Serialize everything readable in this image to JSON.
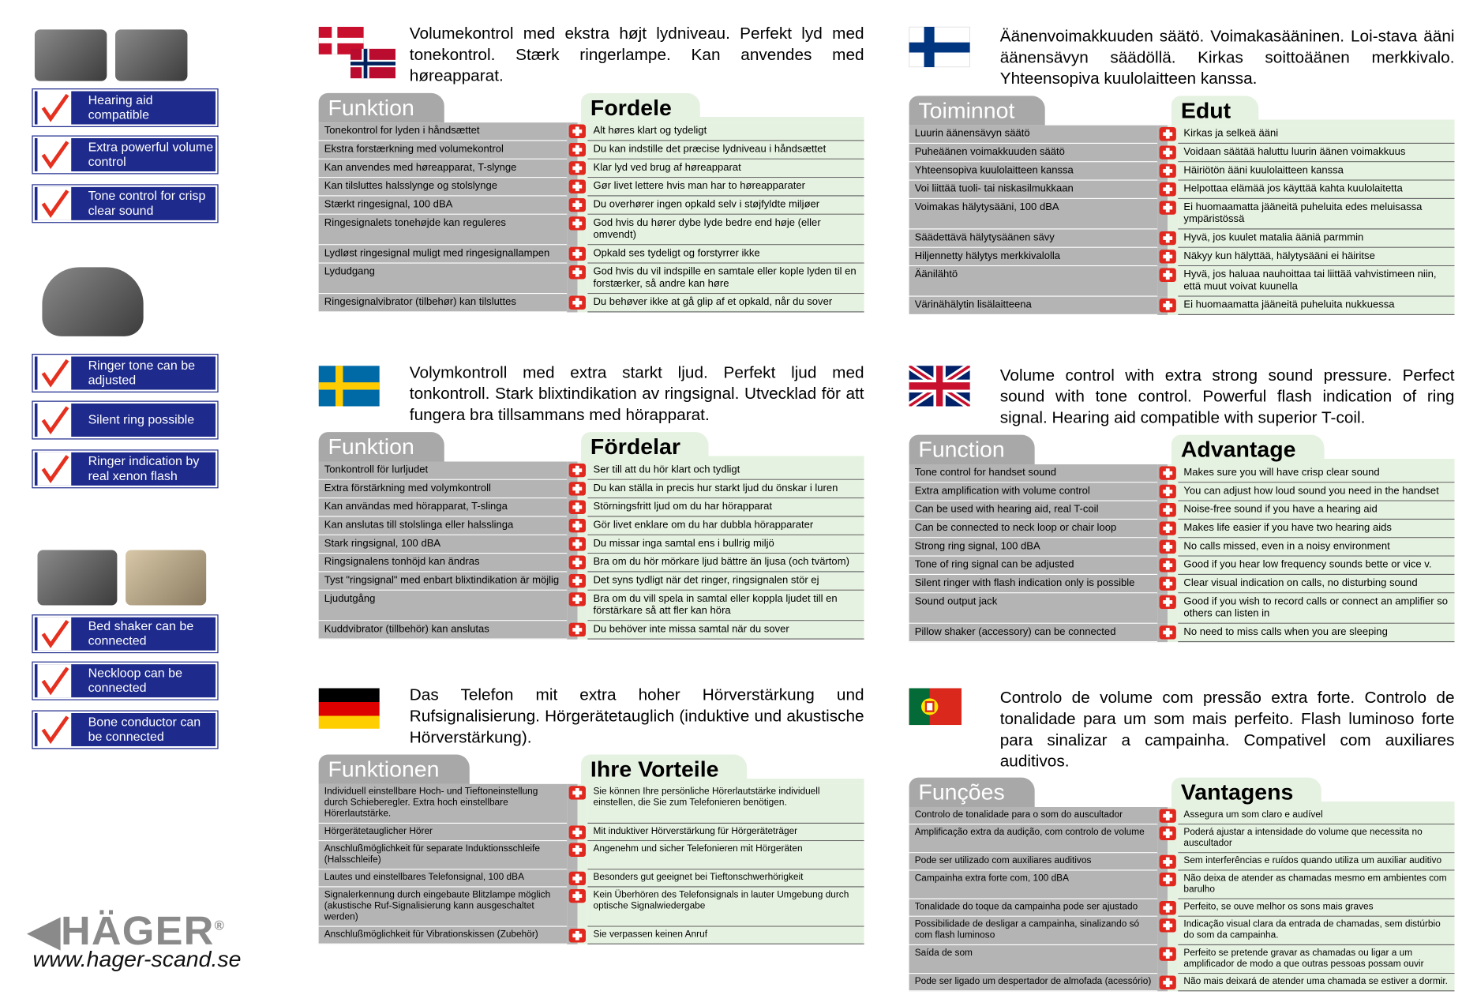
{
  "sidebar": {
    "features": [
      "Hearing aid compatible",
      "Extra powerful volume control",
      "Tone control for crisp clear sound",
      "Ringer tone can be adjusted",
      "Silent ring possible",
      "Ringer indication by real xenon flash",
      "Bed shaker can be connected",
      "Neckloop can be connected",
      "Bone conductor can be connected"
    ],
    "logo": "HÄGER",
    "logo_mark": "®",
    "website": "www.hager-scand.se"
  },
  "panels": [
    {
      "intro": "Volumekontrol med ekstra højt lydniveau. Perfekt lyd med tonekontrol. Stærk ringerlampe. Kan anvendes med høreapparat.",
      "headers": [
        "Funktion",
        "Fordele"
      ],
      "rows": [
        [
          "Tonekontrol for lyden i håndsættet",
          "Alt høres klart og tydeligt"
        ],
        [
          "Ekstra forstærkning med volumekontrol",
          "Du kan indstille det præcise lydniveau i håndsættet"
        ],
        [
          "Kan anvendes med høreapparat, T-slynge",
          "Klar lyd ved brug af høreapparat"
        ],
        [
          "Kan tilsluttes halsslynge og stolslynge",
          "Gør livet lettere hvis man har to høreapparater"
        ],
        [
          "Stærkt ringesignal, 100 dBA",
          "Du overhører ingen opkald selv i støjfyldte miljøer"
        ],
        [
          "Ringesignalets tonehøjde kan reguleres",
          "God hvis du hører dybe lyde bedre end høje (eller omvendt)"
        ],
        [
          "Lydløst ringesignal muligt med ringesignallampen",
          "Opkald ses tydeligt og forstyrrer ikke"
        ],
        [
          "Lydudgang",
          "God hvis du vil indspille en samtale eller kople lyden til en forstærker, så andre kan høre"
        ],
        [
          "Ringesignalvibrator (tilbehør) kan tilsluttes",
          "Du behøver ikke at gå glip af et opkald, når du sover"
        ]
      ]
    },
    {
      "intro": "Äänenvoimakkuuden säätö. Voimakasääninen. Loi-stava ääni äänensävyn säädöllä. Kirkas soittoäänen merkkivalo. Yhteensopiva kuulolaitteen kanssa.",
      "headers": [
        "Toiminnot",
        "Edut"
      ],
      "rows": [
        [
          "Luurin äänensävyn säätö",
          "Kirkas ja selkeä ääni"
        ],
        [
          "Puheäänen voimakkuuden säätö",
          "Voidaan säätää haluttu luurin äänen voimakkuus"
        ],
        [
          "Yhteensopiva kuulolaitteen kanssa",
          "Häiriötön ääni kuulolaitteen kanssa"
        ],
        [
          "Voi liittää tuoli- tai niskasilmukkaan",
          "Helpottaa elämää jos käyttää kahta kuulolaitetta"
        ],
        [
          "Voimakas hälytysääni, 100 dBA",
          "Ei huomaamatta jääneitä puheluita edes meluisassa ympäristössä"
        ],
        [
          "Säädettävä hälytysäänen sävy",
          "Hyvä, jos kuulet matalia ääniä parmmin"
        ],
        [
          "Hiljennetty hälytys merkkivalolla",
          "Näkyy kun hälyttää, hälytysääni ei häiritse"
        ],
        [
          "Äänilähtö",
          "Hyvä, jos haluaa nauhoittaa tai liittää vahvistimeen niin, että muut voivat kuunella"
        ],
        [
          "Värinähälytin lisälaitteena",
          "Ei huomaamatta jääneitä puheluita nukkuessa"
        ]
      ]
    },
    {
      "intro": "Volymkontroll med extra starkt ljud. Perfekt ljud med tonkontroll. Stark blixtindikation av ringsignal. Utvecklad för att fungera bra tillsammans med hörapparat.",
      "headers": [
        "Funktion",
        "Fördelar"
      ],
      "rows": [
        [
          "Tonkontroll för lurljudet",
          "Ser till att du hör klart och tydligt"
        ],
        [
          "Extra förstärkning med volymkontroll",
          "Du kan ställa in precis hur starkt ljud du önskar i luren"
        ],
        [
          "Kan användas med hörapparat, T-slinga",
          "Störningsfritt ljud om du har hörapparat"
        ],
        [
          "Kan anslutas till stolslinga eller halsslinga",
          "Gör livet enklare om du har dubbla hörapparater"
        ],
        [
          "Stark ringsignal, 100 dBA",
          "Du missar inga samtal ens i bullrig miljö"
        ],
        [
          "Ringsignalens tonhöjd kan ändras",
          "Bra om du hör mörkare ljud bättre än ljusa (och tvärtom)"
        ],
        [
          "Tyst \"ringsignal\" med  enbart blixtindikation är möjlig",
          "Det syns tydligt när det ringer, ringsignalen stör ej"
        ],
        [
          "Ljudutgång",
          "Bra om du vill spela in samtal eller koppla ljudet till en förstärkare så att fler kan höra"
        ],
        [
          "Kuddvibrator (tillbehör) kan anslutas",
          "Du behöver inte missa samtal när du sover"
        ]
      ]
    },
    {
      "intro": "Volume control with extra strong sound pressure. Perfect sound with tone control. Powerful flash indication of ring signal. Hearing aid compatible with superior T-coil.",
      "headers": [
        "Function",
        "Advantage"
      ],
      "rows": [
        [
          "Tone control for handset sound",
          "Makes sure you will have crisp clear sound"
        ],
        [
          "Extra amplification with volume control",
          "You can adjust how loud sound you need in the handset"
        ],
        [
          "Can be used with hearing aid, real T-coil",
          "Noise-free sound if you have a hearing aid"
        ],
        [
          "Can be connected to neck loop or chair loop",
          "Makes life easier if you have two hearing aids"
        ],
        [
          "Strong ring signal, 100 dBA",
          "No calls missed, even in a noisy environment"
        ],
        [
          "Tone of ring signal can be adjusted",
          "Good if you hear low frequency sounds bette or vice v."
        ],
        [
          "Silent ringer with flash indication only is possible",
          "Clear visual indication on calls, no disturbing sound"
        ],
        [
          "Sound output jack",
          "Good if you wish to record calls or connect an amplifier so others can listen in"
        ],
        [
          "Pillow shaker (accessory) can be connected",
          "No need to miss calls when you are sleeping"
        ]
      ]
    },
    {
      "intro": "Das Telefon mit extra hoher Hörverstärkung und Rufsignalisierung. Hörgerätetauglich (induktive und akustische Hörverstärkung).",
      "headers": [
        "Funktionen",
        "Ihre Vorteile"
      ],
      "rows": [
        [
          "Individuell einstellbare Hoch- und Tieftoneinstellung durch Schieberegler. Extra hoch einstellbare Hörerlautstärke.",
          "Sie können Ihre persönliche Hörerlautstärke individuell einstellen, die Sie zum Telefonieren benötigen."
        ],
        [
          "Hörgerätetauglicher Hörer",
          "Mit induktiver Hörverstärkung für Hörgeräteträger"
        ],
        [
          "Anschlußmöglichkeit für separate Induktionsschleife (Halsschleife)",
          "Angenehm und sicher Telefonieren mit Hörgeräten"
        ],
        [
          "Lautes und einstellbares Telefonsignal, 100 dBA",
          "Besonders gut geeignet bei Tieftonschwerhörigkeit"
        ],
        [
          "Signalerkennung durch eingebaute Blitzlampe möglich (akustische Ruf-Signalisierung kann ausgeschaltet werden)",
          "Kein Überhören des Telefonsignals in lauter Umgebung durch optische Signalwiedergabe"
        ],
        [
          "Anschlußmöglichkeit für Vibrationskissen (Zubehör)",
          "Sie verpassen keinen Anruf"
        ]
      ]
    },
    {
      "intro": "Controlo de volume com pressão extra forte. Controlo de tonalidade para um som mais perfeito. Flash luminoso forte para sinalizar a campainha. Compativel com auxiliares auditivos.",
      "headers": [
        "Funções",
        "Vantagens"
      ],
      "rows": [
        [
          "Controlo de tonalidade para o som do auscultador",
          "Assegura um som claro e audível"
        ],
        [
          "Amplificação extra da audição, com controlo de volume",
          "Poderá ajustar a intensidade do volume que necessita no auscultador"
        ],
        [
          "Pode ser utilizado com auxiliares auditivos",
          "Sem interferências e ruídos quando utiliza um auxiliar auditivo"
        ],
        [
          "Campainha extra forte com, 100 dBA",
          "Não deixa de atender as chamadas mesmo em ambientes com barulho"
        ],
        [
          "Tonalidade do toque da campainha pode ser ajustado",
          "Perfeito, se ouve melhor os sons mais graves"
        ],
        [
          "Possibilidade de desligar a campainha, sinalizando só com flash luminoso",
          "Indicação visual clara da entrada de chamadas, sem distúrbio do som da campainha."
        ],
        [
          "Saída de som",
          "Perfeito se pretende gravar as chamadas ou ligar a um amplificador de modo a que outras pessoas possam ouvir"
        ],
        [
          "Pode ser ligado um despertador de almofada (acessório)",
          "Não mais deixará de atender uma chamada se estiver a dormir."
        ]
      ]
    }
  ]
}
